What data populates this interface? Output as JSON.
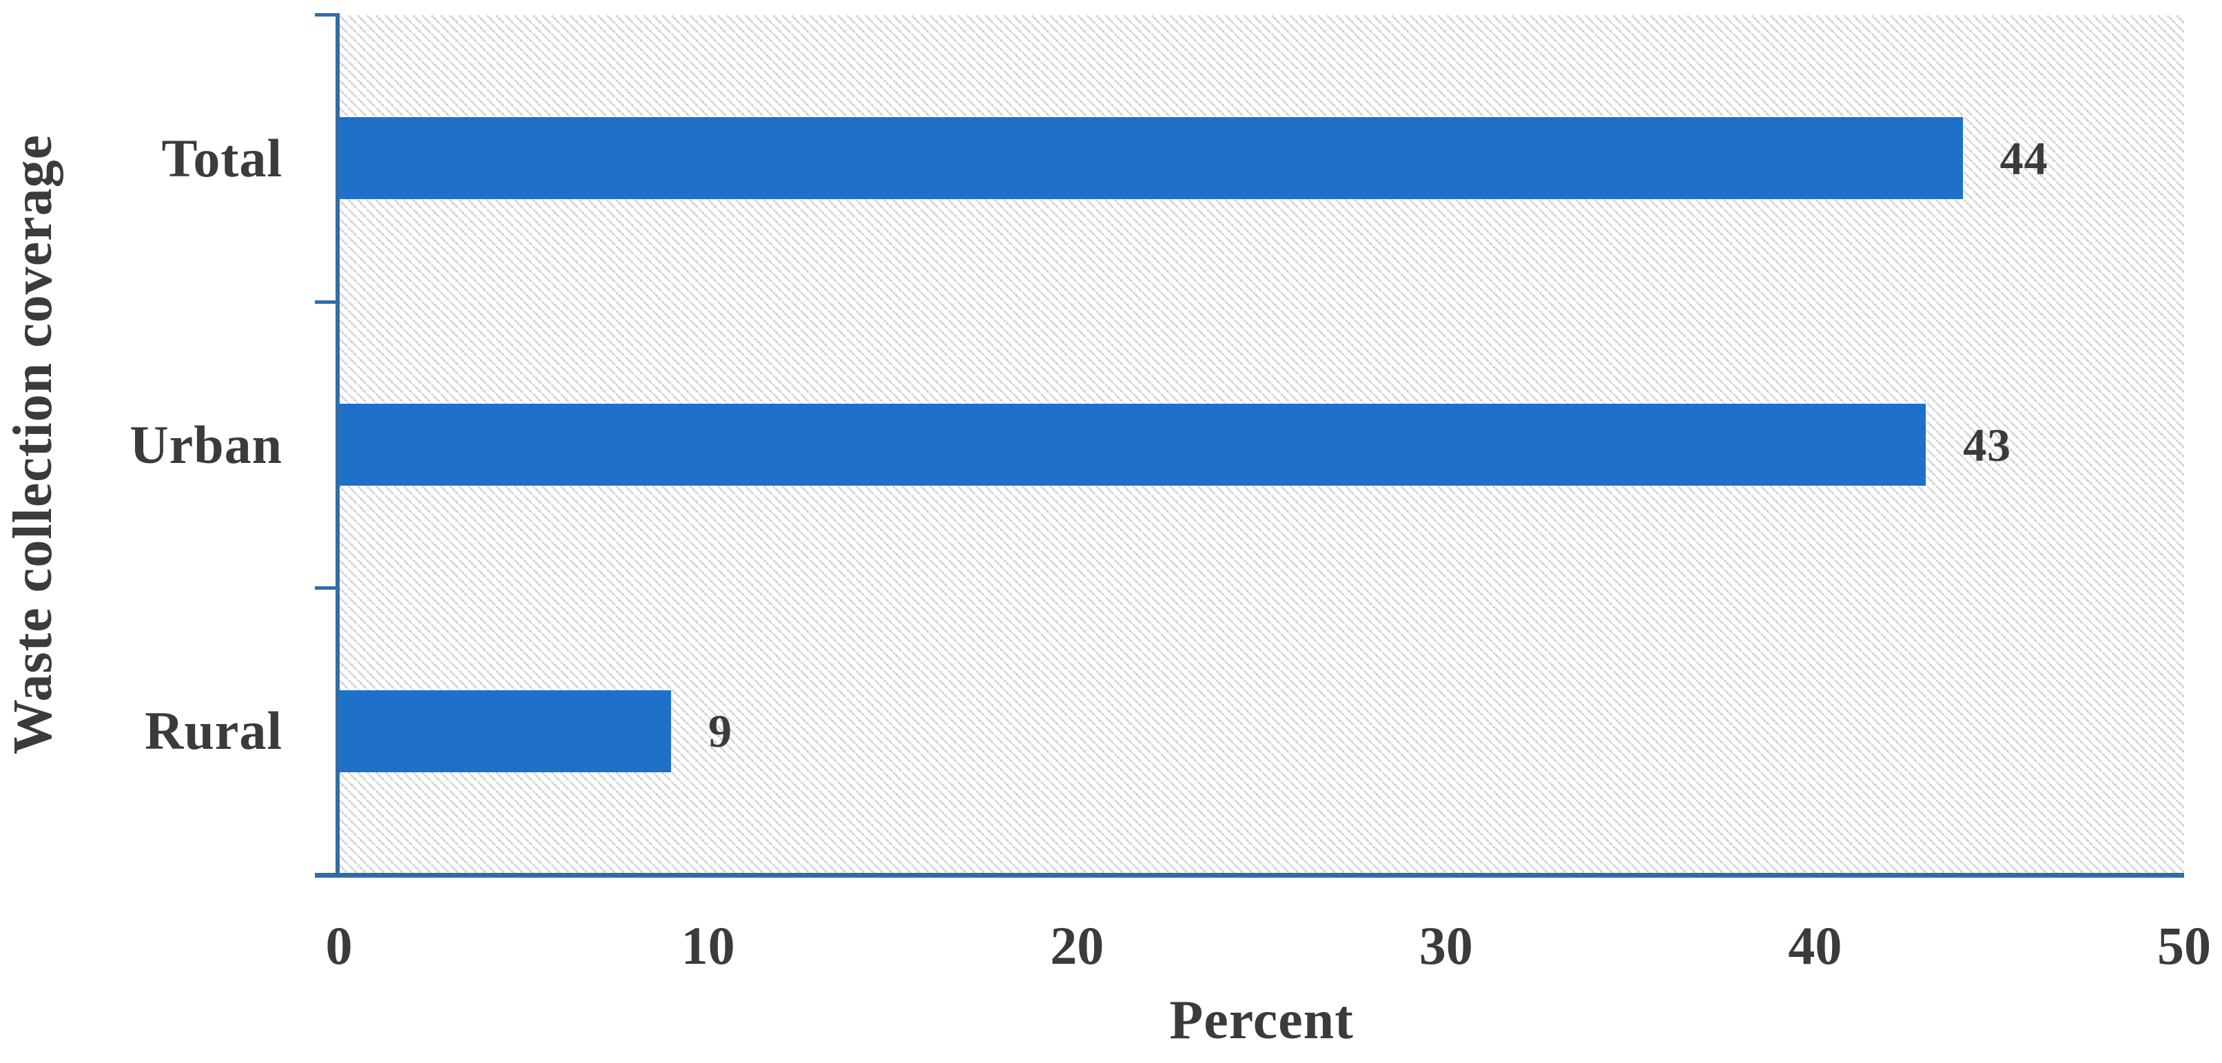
{
  "chart_data": {
    "type": "bar",
    "orientation": "horizontal",
    "title": "",
    "categories": [
      "Total",
      "Urban",
      "Rural"
    ],
    "values": [
      44,
      43,
      9
    ],
    "data_labels_shown": true,
    "xlabel": "Percent",
    "ylabel": "Waste collection coverage",
    "xlim": [
      0,
      50
    ],
    "x_ticks": [
      0,
      10,
      20,
      30,
      40,
      50
    ],
    "x_tick_labels": [
      "0",
      "10",
      "20",
      "30",
      "40",
      "50"
    ],
    "grid": false,
    "legend_position": "none",
    "plot_background": "white with light-gray dotted diagonal hatch",
    "colors": {
      "bar_fill": "#1E70C8",
      "axis_line": "#2F6DA8",
      "text": "#3B3B3B",
      "hatch_dots": "#D3D3D3",
      "background": "#FFFFFF"
    }
  }
}
